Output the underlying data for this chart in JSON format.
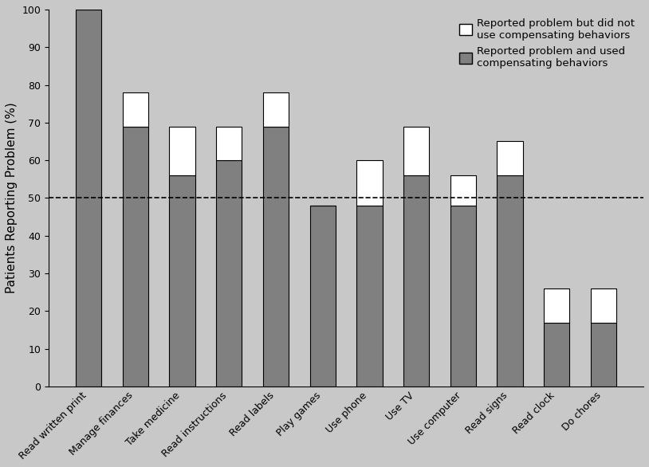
{
  "categories": [
    "Read written print",
    "Manage finances",
    "Take medicine",
    "Read instructions",
    "Read labels",
    "Play games",
    "Use phone",
    "Use TV",
    "Use computer",
    "Read signs",
    "Read clock",
    "Do chores"
  ],
  "gray_values": [
    100,
    69,
    56,
    60,
    69,
    48,
    48,
    56,
    48,
    56,
    17,
    17
  ],
  "white_values": [
    0,
    9,
    13,
    9,
    9,
    0,
    12,
    13,
    8,
    9,
    9,
    9
  ],
  "gray_color": "#808080",
  "white_color": "#ffffff",
  "bar_edge_color": "#000000",
  "ylabel": "Patients Reporting Problem (%)",
  "ylim": [
    0,
    100
  ],
  "yticks": [
    0,
    10,
    20,
    30,
    40,
    50,
    60,
    70,
    80,
    90,
    100
  ],
  "dashed_line_y": 50,
  "legend_label_white": "Reported problem but did not\nuse compensating behaviors",
  "legend_label_gray": "Reported problem and used\ncompensating behaviors",
  "fig_facecolor": "#c8c8c8",
  "axes_facecolor": "#c8c8c8",
  "axis_fontsize": 11,
  "tick_fontsize": 9,
  "legend_fontsize": 9.5
}
